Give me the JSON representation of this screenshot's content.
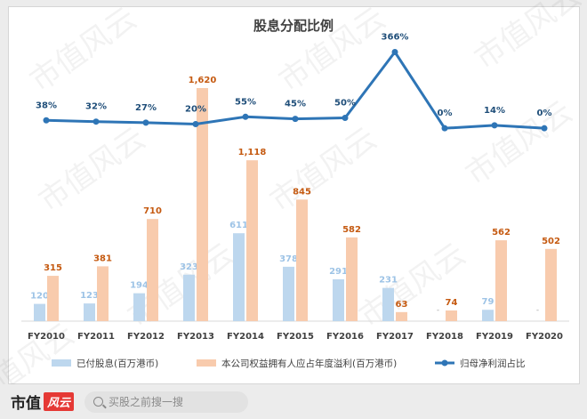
{
  "chart_data": {
    "type": "bar",
    "title": "股息分配比例",
    "categories": [
      "FY2010",
      "FY2011",
      "FY2012",
      "FY2013",
      "FY2014",
      "FY2015",
      "FY2016",
      "FY2017",
      "FY2018",
      "FY2019",
      "FY2020"
    ],
    "series": [
      {
        "name": "已付股息(百万港币)",
        "kind": "bar",
        "color": "#bdd7ee",
        "values": [
          120,
          123,
          194,
          323,
          611,
          378,
          291,
          231,
          null,
          79,
          null
        ],
        "labels": [
          "120",
          "123",
          "194",
          "323",
          "611",
          "378",
          "291",
          "231",
          "-",
          "79",
          "-"
        ],
        "label_color": "#9dc3e6"
      },
      {
        "name": "本公司权益拥有人应占年度溢利(百万港币)",
        "kind": "bar",
        "color": "#f8cbad",
        "values": [
          315,
          381,
          710,
          1620,
          1118,
          845,
          582,
          63,
          74,
          562,
          502
        ],
        "labels": [
          "315",
          "381",
          "710",
          "1,620",
          "1,118",
          "845",
          "582",
          "63",
          "74",
          "562",
          "502"
        ],
        "label_color": "#c55a11"
      },
      {
        "name": "归母净利润占比",
        "kind": "line",
        "color": "#2e75b6",
        "values": [
          38,
          32,
          27,
          20,
          55,
          45,
          50,
          366,
          0,
          14,
          0
        ],
        "labels": [
          "38%",
          "32%",
          "27%",
          "20%",
          "55%",
          "45%",
          "50%",
          "366%",
          "0%",
          "14%",
          "0%"
        ],
        "label_color": "#1f4e79"
      }
    ],
    "legend_position": "bottom",
    "grid": false
  },
  "watermark": "市值风云",
  "footer": {
    "brand_text": "市值",
    "brand_badge": "风云",
    "search_placeholder": "买股之前搜一搜"
  }
}
